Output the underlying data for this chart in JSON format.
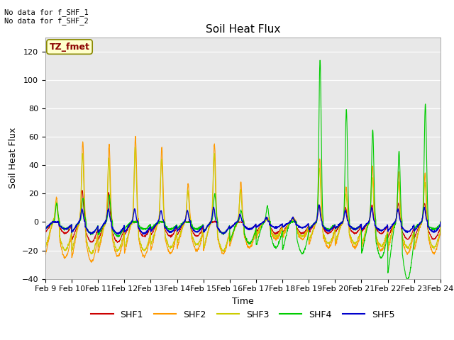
{
  "title": "Soil Heat Flux",
  "ylabel": "Soil Heat Flux",
  "xlabel": "Time",
  "ylim": [
    -40,
    130
  ],
  "yticks": [
    -40,
    -20,
    0,
    20,
    40,
    60,
    80,
    100,
    120
  ],
  "xtick_labels": [
    "Feb 9",
    "Feb 10",
    "Feb 11",
    "Feb 12",
    "Feb 13",
    "Feb 14",
    "Feb 15",
    "Feb 16",
    "Feb 17",
    "Feb 18",
    "Feb 19",
    "Feb 20",
    "Feb 21",
    "Feb 22",
    "Feb 23",
    "Feb 24"
  ],
  "colors": {
    "SHF1": "#cc0000",
    "SHF2": "#ff9900",
    "SHF3": "#cccc00",
    "SHF4": "#00cc00",
    "SHF5": "#0000cc"
  },
  "legend_label": "TZ_fmet",
  "no_data_text1": "No data for f_SHF_1",
  "no_data_text2": "No data for f_SHF_2",
  "fig_bg_color": "#ffffff",
  "plot_bg_color": "#e8e8e8",
  "title_fontsize": 11,
  "axis_fontsize": 9,
  "tick_fontsize": 8,
  "n_days": 15,
  "pts_per_day": 144
}
